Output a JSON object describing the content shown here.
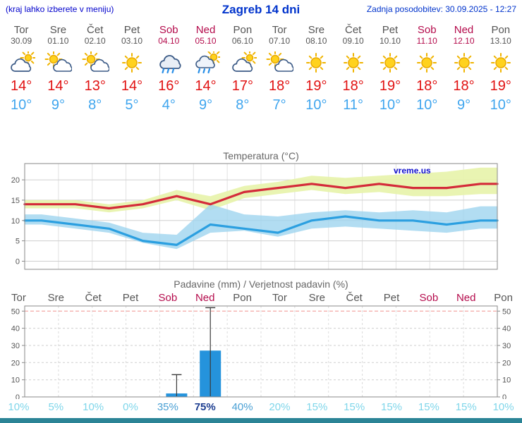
{
  "header": {
    "left_note": "(kraj lahko izberete v meniju)",
    "title": "Zagreb 14 dni",
    "updated": "Zadnja posodobitev: 30.09.2025 - 12:27"
  },
  "watermark": "vreme.us",
  "colors": {
    "accent_blue": "#0033cc",
    "temp_max_text": "#e11212",
    "temp_min_text": "#3fa5ee",
    "weekend_text": "#b40a4b",
    "weekday_text": "#555555",
    "footer_bar": "#2b8496",
    "prob_low": "#7fd6ea",
    "prob_mid": "#4aa0d4",
    "prob_high": "#1d3e91"
  },
  "days": [
    {
      "name": "Tor",
      "date": "30.09",
      "weekend": false,
      "icon": "cloudy-sun",
      "tmax": "14°",
      "tmin": "10°",
      "prob": "10%"
    },
    {
      "name": "Sre",
      "date": "01.10",
      "weekend": false,
      "icon": "partly",
      "tmax": "14°",
      "tmin": "9°",
      "prob": "5%"
    },
    {
      "name": "Čet",
      "date": "02.10",
      "weekend": false,
      "icon": "partly",
      "tmax": "13°",
      "tmin": "8°",
      "prob": "10%"
    },
    {
      "name": "Pet",
      "date": "03.10",
      "weekend": false,
      "icon": "sunny",
      "tmax": "14°",
      "tmin": "5°",
      "prob": "0%"
    },
    {
      "name": "Sob",
      "date": "04.10",
      "weekend": true,
      "icon": "rain",
      "tmax": "16°",
      "tmin": "4°",
      "prob": "35%"
    },
    {
      "name": "Ned",
      "date": "05.10",
      "weekend": true,
      "icon": "rain-sun",
      "tmax": "14°",
      "tmin": "9°",
      "prob": "75%"
    },
    {
      "name": "Pon",
      "date": "06.10",
      "weekend": false,
      "icon": "cloudy-sun",
      "tmax": "17°",
      "tmin": "8°",
      "prob": "40%"
    },
    {
      "name": "Tor",
      "date": "07.10",
      "weekend": false,
      "icon": "partly",
      "tmax": "18°",
      "tmin": "7°",
      "prob": "20%"
    },
    {
      "name": "Sre",
      "date": "08.10",
      "weekend": false,
      "icon": "sunny",
      "tmax": "19°",
      "tmin": "10°",
      "prob": "15%"
    },
    {
      "name": "Čet",
      "date": "09.10",
      "weekend": false,
      "icon": "sunny",
      "tmax": "18°",
      "tmin": "11°",
      "prob": "15%"
    },
    {
      "name": "Pet",
      "date": "10.10",
      "weekend": false,
      "icon": "sunny",
      "tmax": "19°",
      "tmin": "10°",
      "prob": "15%"
    },
    {
      "name": "Sob",
      "date": "11.10",
      "weekend": true,
      "icon": "sunny",
      "tmax": "18°",
      "tmin": "10°",
      "prob": "15%"
    },
    {
      "name": "Ned",
      "date": "12.10",
      "weekend": true,
      "icon": "sunny",
      "tmax": "18°",
      "tmin": "9°",
      "prob": "15%"
    },
    {
      "name": "Pon",
      "date": "13.10",
      "weekend": false,
      "icon": "sunny",
      "tmax": "19°",
      "tmin": "10°",
      "prob": "10%"
    }
  ],
  "chart_data": [
    {
      "type": "line",
      "title": "Temperatura (°C)",
      "x": [
        "Tor 30.09",
        "Sre 01.10",
        "Čet 02.10",
        "Pet 03.10",
        "Sob 04.10",
        "Ned 05.10",
        "Pon 06.10",
        "Tor 07.10",
        "Sre 08.10",
        "Čet 09.10",
        "Pet 10.10",
        "Sob 11.10",
        "Ned 12.10",
        "Pon 13.10"
      ],
      "series": [
        {
          "name": "max temperatura",
          "color": "#d42b3a",
          "values": [
            14,
            14,
            13,
            14,
            16,
            14,
            17,
            18,
            19,
            18,
            19,
            18,
            18,
            19
          ]
        },
        {
          "name": "min temperatura",
          "color": "#2b9fe0",
          "values": [
            10,
            9,
            8,
            5,
            4,
            9,
            8,
            7,
            10,
            11,
            10,
            10,
            9,
            10
          ]
        }
      ],
      "bands": [
        {
          "name": "max razpon",
          "color": "#e7f3ab",
          "upper": [
            15,
            15,
            14,
            15,
            17.5,
            16,
            18.5,
            19.5,
            21,
            20.5,
            21,
            21.5,
            22,
            23
          ],
          "lower": [
            13,
            13,
            12,
            13,
            15,
            12.5,
            15.5,
            16.5,
            17.5,
            16.5,
            17,
            16,
            16,
            16.5
          ]
        },
        {
          "name": "min razpon",
          "color": "#9fd4ef",
          "upper": [
            11.5,
            10.5,
            9.5,
            7,
            6.5,
            14,
            11.5,
            11,
            12,
            12.5,
            12,
            12.5,
            12,
            13.5
          ],
          "lower": [
            9,
            8,
            7,
            4.5,
            3,
            7,
            7.5,
            6,
            8,
            8.5,
            8,
            7.5,
            7,
            8
          ]
        }
      ],
      "ylim": [
        -2,
        24
      ],
      "yticks": [
        0,
        5,
        10,
        15,
        20
      ],
      "grid": true,
      "legend": "none",
      "watermark": "vreme.us"
    },
    {
      "type": "bar",
      "title": "Padavine (mm) / Verjetnost padavin (%)",
      "categories": [
        "Tor",
        "Sre",
        "Čet",
        "Pet",
        "Sob",
        "Ned",
        "Pon",
        "Tor",
        "Sre",
        "Čet",
        "Pet",
        "Sob",
        "Ned",
        "Pon"
      ],
      "weekend_flags": [
        false,
        false,
        false,
        false,
        true,
        true,
        false,
        false,
        false,
        false,
        false,
        true,
        true,
        false
      ],
      "precip_mm": [
        0,
        0,
        0,
        0,
        2,
        27,
        0,
        0,
        0,
        0,
        0,
        0,
        0,
        0
      ],
      "precip_max_mm": [
        0,
        0,
        0,
        0,
        13,
        52,
        0,
        0,
        0,
        0,
        0,
        0,
        0,
        0
      ],
      "probability_pct": [
        10,
        5,
        10,
        0,
        35,
        75,
        40,
        20,
        15,
        15,
        15,
        15,
        15,
        10
      ],
      "bar_color": "#2593dc",
      "ylim": [
        0,
        53
      ],
      "yticks": [
        0,
        10,
        20,
        30,
        40,
        50
      ],
      "threshold_line_mm": 50,
      "grid": true,
      "legend": "none"
    }
  ]
}
